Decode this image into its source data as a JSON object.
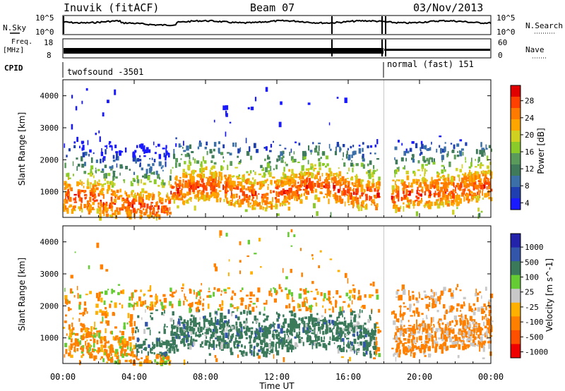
{
  "header": {
    "station": "Inuvik (fitACF)",
    "beam": "Beam 07",
    "date": "03/Nov/2013"
  },
  "top_panels": {
    "nsky_label": "N.Sky",
    "nsky_ticks": [
      "10^5",
      "10^0"
    ],
    "nsearch_label": "N.Search",
    "nsearch_ticks": [
      "10^5",
      "10^0"
    ],
    "freq_label": "Freq.",
    "freq_unit": "[MHz]",
    "freq_ticks": [
      "18",
      "8"
    ],
    "nave_label": "Nave",
    "nave_ticks": [
      "60",
      "0"
    ],
    "cpid_label": "CPID",
    "cpid_segments": [
      {
        "name": "twofsound -3501",
        "start_hour": 0,
        "end_hour": 18.0
      },
      {
        "name": "normal (fast) 151",
        "start_hour": 18.0,
        "end_hour": 24.0
      }
    ]
  },
  "x_axis": {
    "label": "Time UT",
    "ticks": [
      "00:00",
      "04:00",
      "08:00",
      "12:00",
      "16:00",
      "20:00",
      "00:00"
    ]
  },
  "colors": {
    "power": [
      "#1a1aff",
      "#1f3fb0",
      "#3a6fa8",
      "#3f7a5a",
      "#5a9a5a",
      "#8acb2a",
      "#d0d020",
      "#ffa500",
      "#ff7a00",
      "#ff4000",
      "#e00000"
    ],
    "velocity": [
      "#2222aa",
      "#3355aa",
      "#3a7a5a",
      "#66cc33",
      "#c8c8c8",
      "#ffb000",
      "#ff8000",
      "#ff5000",
      "#ee0000"
    ]
  },
  "chart_data": [
    {
      "type": "heatmap",
      "name": "power",
      "ylabel": "Slant Range [km]",
      "xlabel": "",
      "x_range_hours": [
        0,
        24
      ],
      "ylim": [
        200,
        4500
      ],
      "yticks": [
        "1000",
        "2000",
        "3000",
        "4000"
      ],
      "colorbar_label": "Power [dB]",
      "colorbar_ticks": [
        "28",
        "24",
        "20",
        "16",
        "12",
        "8",
        "4"
      ],
      "mode_change_hour": 18.0
    },
    {
      "type": "heatmap",
      "name": "velocity",
      "ylabel": "Slant Range [km]",
      "xlabel": "Time UT",
      "x_range_hours": [
        0,
        24
      ],
      "ylim": [
        200,
        4500
      ],
      "yticks": [
        "1000",
        "2000",
        "3000",
        "4000"
      ],
      "colorbar_label": "Velocity [m s^-1]",
      "colorbar_ticks": [
        "1000",
        "500",
        "100",
        "25",
        "-25",
        "-100",
        "-500",
        "-1000"
      ],
      "mode_change_hour": 18.0
    }
  ]
}
